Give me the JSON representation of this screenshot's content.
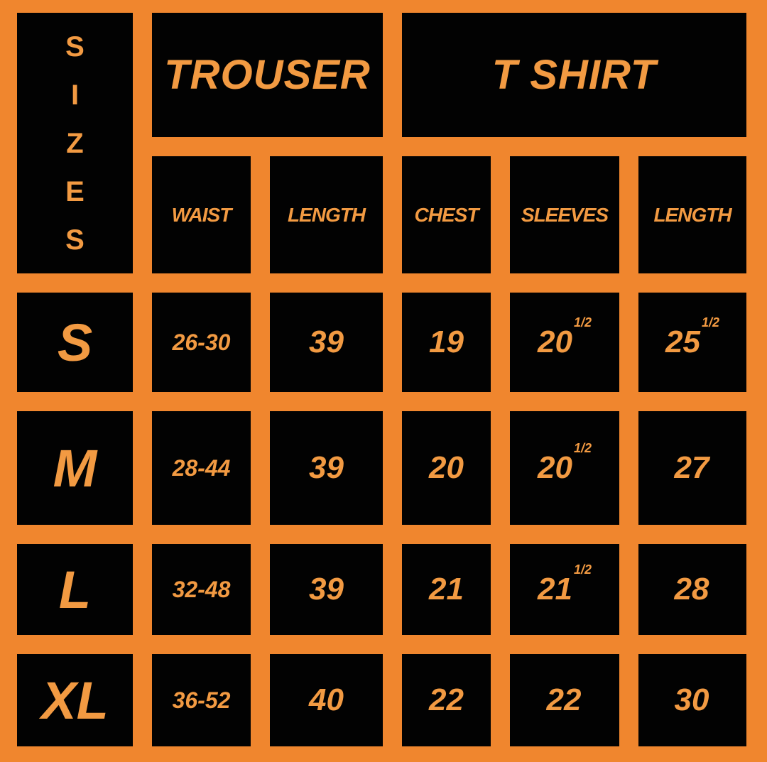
{
  "sizes_header": [
    "S",
    "I",
    "Z",
    "E",
    "S"
  ],
  "groups": {
    "trouser": "TROUSER",
    "tshirt": "T SHIRT"
  },
  "columns": [
    "WAIST",
    "LENGTH",
    "CHEST",
    "SLEEVES",
    "LENGTH"
  ],
  "rows": [
    {
      "size": "S",
      "waist": "26-30",
      "trouser_length": "39",
      "chest": "19",
      "sleeves": "20",
      "sleeves_frac": "1/2",
      "length": "25",
      "length_frac": "1/2"
    },
    {
      "size": "M",
      "waist": "28-44",
      "trouser_length": "39",
      "chest": "20",
      "sleeves": "20",
      "sleeves_frac": "1/2",
      "length": "27",
      "length_frac": ""
    },
    {
      "size": "L",
      "waist": "32-48",
      "trouser_length": "39",
      "chest": "21",
      "sleeves": "21",
      "sleeves_frac": "1/2",
      "length": "28",
      "length_frac": ""
    },
    {
      "size": "XL",
      "waist": "36-52",
      "trouser_length": "40",
      "chest": "22",
      "sleeves": "22",
      "sleeves_frac": "",
      "length": "30",
      "length_frac": ""
    }
  ],
  "colors": {
    "background": "#f0862e",
    "cell": "#020202",
    "text": "#f29a42"
  }
}
